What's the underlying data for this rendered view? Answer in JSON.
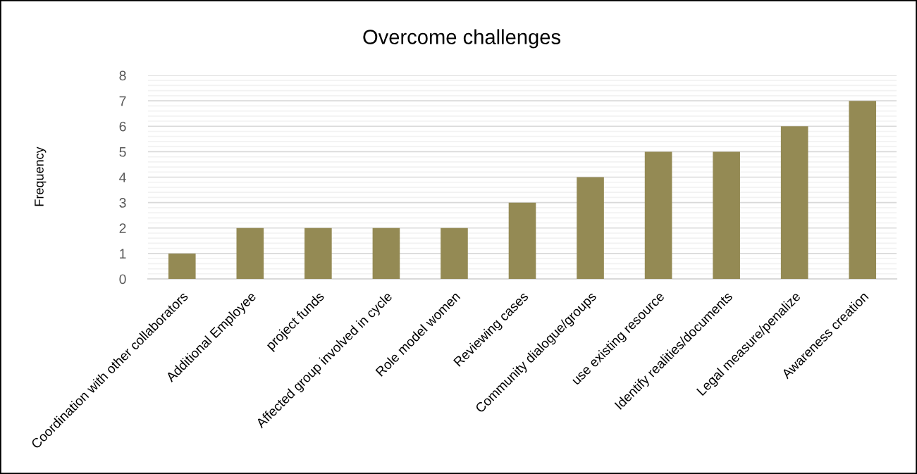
{
  "chart_data": {
    "type": "bar",
    "title": "Overcome challenges",
    "ylabel": "Frequency",
    "categories": [
      "Coordination with other collaborators",
      "Additional Employee",
      "project funds",
      "Affected group involved in cycle",
      "Role model women",
      "Reviewing cases",
      "Community dialogue/groups",
      "use existing resource",
      "Identify realities/documents",
      "Legal measure/penalize",
      "Awareness creation"
    ],
    "values": [
      1,
      2,
      2,
      2,
      2,
      3,
      4,
      5,
      5,
      6,
      7
    ],
    "color": "#948a54",
    "ylim": [
      0,
      8
    ],
    "yticks": [
      0,
      {
        "value": 0.2,
        "label": null
      },
      {
        "value": 0.4,
        "label": null
      },
      {
        "value": 0.6,
        "label": null
      },
      {
        "value": 0.8,
        "label": null
      },
      1,
      {
        "value": 1.2,
        "label": null
      },
      {
        "value": 1.4,
        "label": null
      },
      {
        "value": 1.6,
        "label": null
      },
      {
        "value": 1.8,
        "label": null
      },
      2,
      {
        "value": 2.2,
        "label": null
      },
      {
        "value": 2.4,
        "label": null
      },
      {
        "value": 2.6,
        "label": null
      },
      {
        "value": 2.8,
        "label": null
      },
      3,
      {
        "value": 3.2,
        "label": null
      },
      {
        "value": 3.4,
        "label": null
      },
      {
        "value": 3.6,
        "label": null
      },
      {
        "value": 3.8,
        "label": null
      },
      4,
      {
        "value": 4.2,
        "label": null
      },
      {
        "value": 4.4,
        "label": null
      },
      {
        "value": 4.6,
        "label": null
      },
      {
        "value": 4.8,
        "label": null
      },
      5,
      {
        "value": 5.2,
        "label": null
      },
      {
        "value": 5.4,
        "label": null
      },
      {
        "value": 5.6,
        "label": null
      },
      {
        "value": 5.8,
        "label": null
      },
      6,
      {
        "value": 6.2,
        "label": null
      },
      {
        "value": 6.4,
        "label": null
      },
      {
        "value": 6.6,
        "label": null
      },
      {
        "value": 6.8,
        "label": null
      },
      7,
      {
        "value": 7.2,
        "label": null
      },
      {
        "value": 7.4,
        "label": null
      },
      {
        "value": 7.6,
        "label": null
      },
      {
        "value": 7.8,
        "label": null
      },
      8
    ],
    "grid": "y"
  }
}
